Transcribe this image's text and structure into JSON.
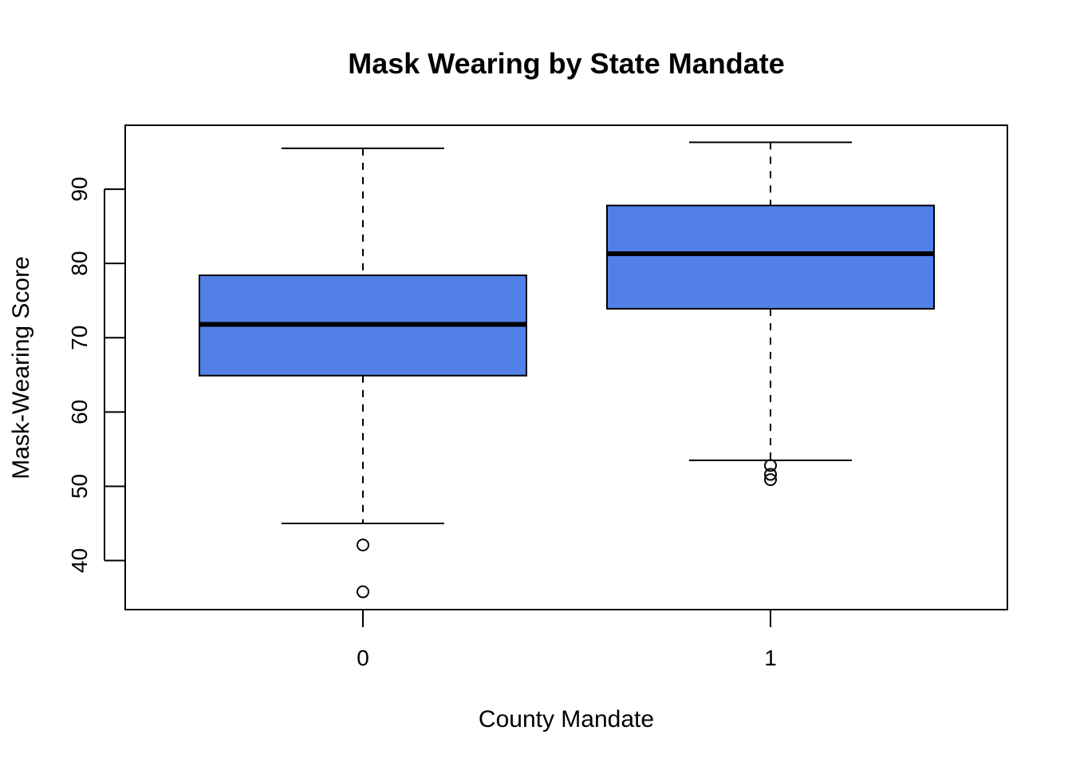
{
  "chart_data": {
    "type": "boxplot",
    "title": "Mask Wearing by State Mandate",
    "xlabel": "County Mandate",
    "ylabel": "Mask-Wearing Score",
    "categories": [
      "0",
      "1"
    ],
    "y_ticks": [
      40,
      50,
      60,
      70,
      80,
      90
    ],
    "ylim": [
      33.4,
      98.6
    ],
    "box_color": "#5280e9",
    "boxes": [
      {
        "category": "0",
        "whisker_low": 45.0,
        "q1": 64.9,
        "median": 71.8,
        "q3": 78.4,
        "whisker_high": 95.5,
        "outliers": [
          42.1,
          35.8
        ]
      },
      {
        "category": "1",
        "whisker_low": 53.5,
        "q1": 73.9,
        "median": 81.3,
        "q3": 87.8,
        "whisker_high": 96.3,
        "outliers": [
          52.8,
          51.6,
          50.9
        ]
      }
    ]
  }
}
